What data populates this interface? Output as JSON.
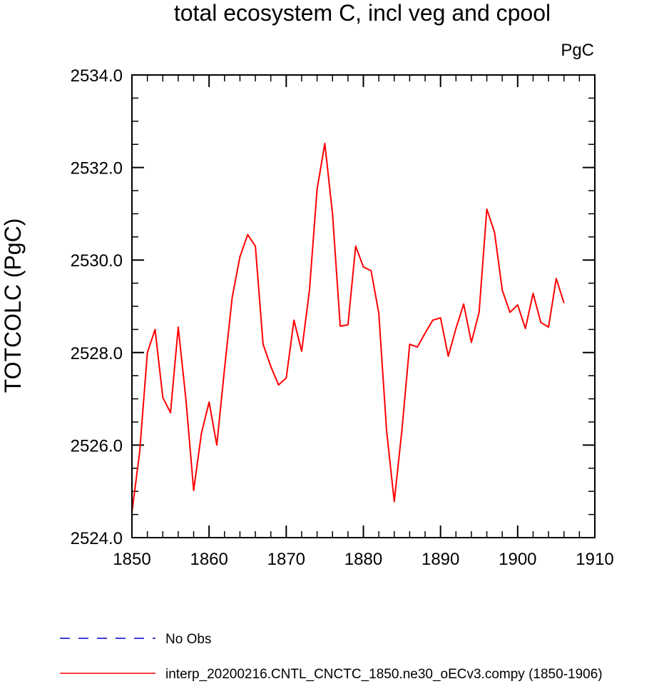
{
  "chart_data": {
    "type": "line",
    "title": "total ecosystem C, incl veg and cpool",
    "units": "PgC",
    "xlabel": "",
    "ylabel": "TOTCOLC  (PgC)",
    "xlim": [
      1850,
      1910
    ],
    "ylim": [
      2524.0,
      2534.0
    ],
    "x_ticks": [
      1850,
      1860,
      1870,
      1880,
      1890,
      1900,
      1910
    ],
    "x_tick_labels": [
      "1850",
      "1860",
      "1870",
      "1880",
      "1890",
      "1900",
      "1910"
    ],
    "x_minor_step": 2,
    "y_ticks": [
      2524.0,
      2526.0,
      2528.0,
      2530.0,
      2532.0,
      2534.0
    ],
    "y_tick_labels": [
      "2524.0",
      "2526.0",
      "2528.0",
      "2530.0",
      "2532.0",
      "2534.0"
    ],
    "y_minor_step": 0.5,
    "grid": false,
    "legend_position": "bottom",
    "series": [
      {
        "name": "No Obs",
        "color": "#0000cc",
        "dash": "dashed",
        "x": [],
        "y": []
      },
      {
        "name": "interp_20200216.CNTL_CNCTC_1850.ne30_oECv3.compy (1850-1906)",
        "color": "#ff0000",
        "dash": "solid",
        "x": [
          1850,
          1851,
          1852,
          1853,
          1854,
          1855,
          1856,
          1857,
          1858,
          1859,
          1860,
          1861,
          1862,
          1863,
          1864,
          1865,
          1866,
          1867,
          1868,
          1869,
          1870,
          1871,
          1872,
          1873,
          1874,
          1875,
          1876,
          1877,
          1878,
          1879,
          1880,
          1881,
          1882,
          1883,
          1884,
          1885,
          1886,
          1887,
          1888,
          1889,
          1890,
          1891,
          1892,
          1893,
          1894,
          1895,
          1896,
          1897,
          1898,
          1899,
          1900,
          1901,
          1902,
          1903,
          1904,
          1905,
          1906
        ],
        "y": [
          2524.55,
          2525.85,
          2528.0,
          2528.5,
          2527.03,
          2526.7,
          2528.55,
          2526.98,
          2525.02,
          2526.25,
          2526.93,
          2526.0,
          2527.65,
          2529.2,
          2530.07,
          2530.55,
          2530.3,
          2528.18,
          2527.7,
          2527.3,
          2527.45,
          2528.7,
          2528.03,
          2529.33,
          2531.53,
          2532.52,
          2531.0,
          2528.57,
          2528.6,
          2530.3,
          2529.85,
          2529.77,
          2528.85,
          2526.33,
          2524.78,
          2526.33,
          2528.18,
          2528.12,
          2528.42,
          2528.7,
          2528.75,
          2527.92,
          2528.52,
          2529.05,
          2528.22,
          2528.87,
          2531.1,
          2530.6,
          2529.35,
          2528.87,
          2529.03,
          2528.52,
          2529.28,
          2528.65,
          2528.55,
          2529.6,
          2529.07
        ]
      }
    ]
  }
}
